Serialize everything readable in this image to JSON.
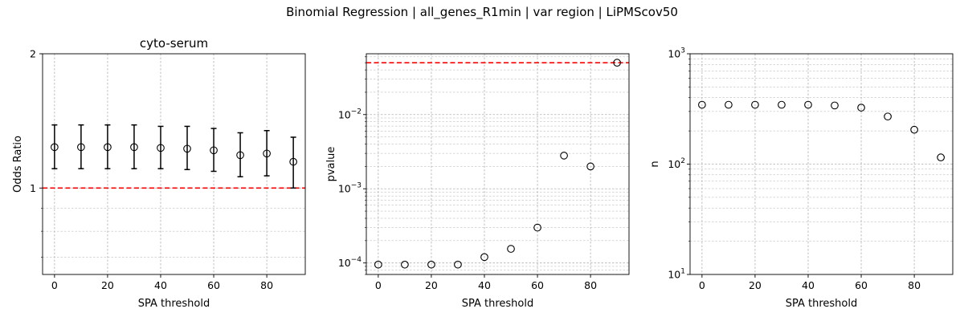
{
  "figure": {
    "suptitle": "Binomial Regression | all_genes_R1min | var region | LiPMScov50"
  },
  "chart_data": [
    {
      "type": "scatter",
      "title": "cyto-serum",
      "xlabel": "SPA threshold",
      "ylabel": "Odds Ratio",
      "yscale": "log",
      "xlim": [
        -4.5,
        94.5
      ],
      "ylim": [
        0.64,
        2
      ],
      "xticks": [
        0,
        20,
        40,
        60,
        80
      ],
      "yticks": [
        1,
        2
      ],
      "ytick_labels": [
        "1",
        "2"
      ],
      "grid": true,
      "x": [
        0,
        10,
        20,
        30,
        40,
        50,
        60,
        70,
        80,
        90
      ],
      "y": [
        1.235,
        1.235,
        1.235,
        1.235,
        1.23,
        1.225,
        1.215,
        1.185,
        1.195,
        1.145
      ],
      "yerr_low": [
        1.105,
        1.105,
        1.105,
        1.105,
        1.105,
        1.1,
        1.09,
        1.06,
        1.065,
        1.0
      ],
      "yerr_high": [
        1.385,
        1.385,
        1.385,
        1.385,
        1.375,
        1.375,
        1.36,
        1.33,
        1.345,
        1.3
      ],
      "hline": {
        "y": 1,
        "color": "#ff0000",
        "style": "dashed"
      },
      "marker_color": "#000000"
    },
    {
      "type": "scatter",
      "title": "",
      "xlabel": "SPA threshold",
      "ylabel": "pvalue",
      "yscale": "log",
      "xlim": [
        -4.5,
        94.5
      ],
      "ylim": [
        7e-05,
        0.066
      ],
      "xticks": [
        0,
        20,
        40,
        60,
        80
      ],
      "yticks": [
        0.0001,
        0.001,
        0.01
      ],
      "ytick_labels": [
        "10",
        "10",
        "10"
      ],
      "ytick_exponents": [
        "−4",
        "−3",
        "−2"
      ],
      "grid": true,
      "x": [
        0,
        10,
        20,
        30,
        40,
        50,
        60,
        70,
        80,
        90
      ],
      "y": [
        9.5e-05,
        9.5e-05,
        9.5e-05,
        9.5e-05,
        0.00012,
        0.000155,
        0.0003,
        0.0028,
        0.002,
        0.05
      ],
      "hline": {
        "y": 0.05,
        "color": "#ff0000",
        "style": "dashed"
      },
      "marker_color": "#000000"
    },
    {
      "type": "scatter",
      "title": "",
      "xlabel": "SPA threshold",
      "ylabel": "n",
      "yscale": "log",
      "xlim": [
        -4.5,
        94.5
      ],
      "ylim": [
        10,
        1000
      ],
      "xticks": [
        0,
        20,
        40,
        60,
        80
      ],
      "yticks": [
        10,
        100,
        1000
      ],
      "ytick_labels": [
        "10",
        "10",
        "10"
      ],
      "ytick_exponents": [
        "1",
        "2",
        "3"
      ],
      "grid": true,
      "x": [
        0,
        10,
        20,
        30,
        40,
        50,
        60,
        70,
        80,
        90
      ],
      "y": [
        345,
        345,
        345,
        345,
        345,
        340,
        325,
        270,
        205,
        115
      ],
      "marker_color": "#000000"
    }
  ]
}
